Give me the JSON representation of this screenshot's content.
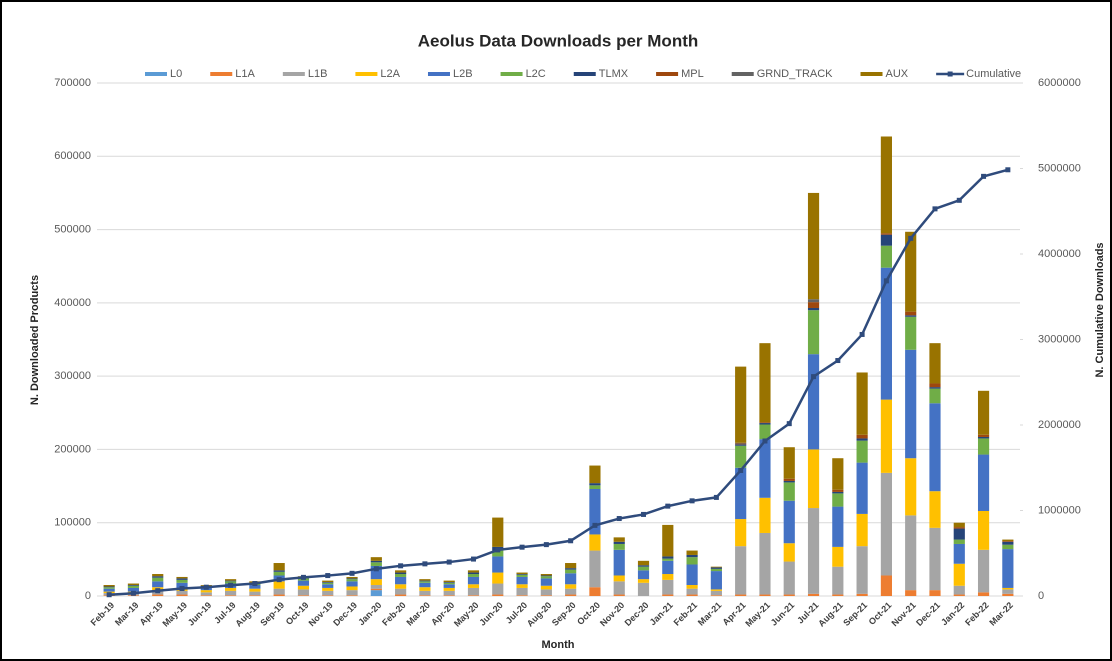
{
  "chart_data": {
    "type": "bar",
    "stacked": true,
    "title": "Aeolus Data Downloads per Month",
    "x_label": "Month",
    "y_label": "N. Downloaded Products",
    "y2_label": "N. Cumulative Downloads",
    "categories": [
      "Feb-19",
      "Mar-19",
      "Apr-19",
      "May-19",
      "Jun-19",
      "Jul-19",
      "Aug-19",
      "Sep-19",
      "Oct-19",
      "Nov-19",
      "Dec-19",
      "Jan-20",
      "Feb-20",
      "Mar-20",
      "Apr-20",
      "May-20",
      "Jun-20",
      "Jul-20",
      "Aug-20",
      "Sep-20",
      "Oct-20",
      "Nov-20",
      "Dec-20",
      "Jan-21",
      "Feb-21",
      "Mar-21",
      "Apr-21",
      "May-21",
      "Jun-21",
      "Jul-21",
      "Aug-21",
      "Sep-21",
      "Oct-21",
      "Nov-21",
      "Dec-21",
      "Jan-22",
      "Feb-22",
      "Mar-22"
    ],
    "ylim": [
      0,
      700000
    ],
    "yticks": [
      0,
      100000,
      200000,
      300000,
      400000,
      500000,
      600000,
      700000
    ],
    "y2lim": [
      0,
      6000000
    ],
    "y2ticks": [
      0,
      1000000,
      2000000,
      3000000,
      4000000,
      5000000,
      6000000
    ],
    "grid": true,
    "legend": "top",
    "series": [
      {
        "name": "L0",
        "color": "#5b9bd5",
        "values": [
          0,
          0,
          0,
          0,
          0,
          0,
          0,
          0,
          0,
          0,
          0,
          8000,
          0,
          0,
          0,
          0,
          0,
          0,
          0,
          0,
          0,
          0,
          0,
          0,
          0,
          0,
          0,
          0,
          0,
          0,
          0,
          0,
          0,
          0,
          0,
          0,
          0,
          0
        ]
      },
      {
        "name": "L1A",
        "color": "#ed7d31",
        "values": [
          1000,
          1000,
          2000,
          2000,
          1000,
          1000,
          1000,
          2000,
          1000,
          1000,
          1000,
          2000,
          2000,
          1000,
          1000,
          1000,
          2000,
          1000,
          1000,
          2000,
          12000,
          2000,
          0,
          2000,
          2000,
          1000,
          2000,
          2000,
          2000,
          3000,
          2000,
          3000,
          28000,
          8000,
          8000,
          2000,
          5000,
          3000
        ]
      },
      {
        "name": "L1B",
        "color": "#a5a5a5",
        "values": [
          3000,
          3000,
          6000,
          5000,
          4000,
          6000,
          5000,
          8000,
          8000,
          6000,
          7000,
          5000,
          8000,
          6000,
          6000,
          10000,
          15000,
          10000,
          8000,
          8000,
          50000,
          18000,
          18000,
          20000,
          8000,
          6000,
          66000,
          84000,
          45000,
          117000,
          38000,
          65000,
          140000,
          102000,
          85000,
          12000,
          58000,
          6000
        ]
      },
      {
        "name": "L2A",
        "color": "#ffc000",
        "values": [
          2000,
          2000,
          4000,
          3000,
          3000,
          4000,
          4000,
          10000,
          5000,
          4000,
          5000,
          8000,
          6000,
          5000,
          4000,
          5000,
          15000,
          5000,
          5000,
          6000,
          22000,
          8000,
          5000,
          8000,
          5000,
          2000,
          37000,
          48000,
          25000,
          80000,
          27000,
          44000,
          100000,
          78000,
          50000,
          30000,
          53000,
          2000
        ]
      },
      {
        "name": "L2B",
        "color": "#4472c4",
        "values": [
          4000,
          5000,
          8000,
          8000,
          3000,
          6000,
          5000,
          8000,
          7000,
          5000,
          7000,
          18000,
          10000,
          6000,
          5000,
          10000,
          22000,
          10000,
          10000,
          15000,
          62000,
          35000,
          12000,
          18000,
          28000,
          25000,
          70000,
          80000,
          58000,
          130000,
          55000,
          70000,
          180000,
          148000,
          120000,
          27000,
          77000,
          53000
        ]
      },
      {
        "name": "L2C",
        "color": "#70ad47",
        "values": [
          2000,
          3000,
          5000,
          4000,
          2000,
          3000,
          2000,
          5000,
          3000,
          2000,
          3000,
          5000,
          4000,
          2000,
          2000,
          4000,
          8000,
          3000,
          3000,
          5000,
          5000,
          8000,
          5000,
          3000,
          10000,
          3000,
          30000,
          20000,
          25000,
          60000,
          18000,
          30000,
          30000,
          45000,
          20000,
          6000,
          22000,
          6000
        ]
      },
      {
        "name": "TLMX",
        "color": "#264478",
        "values": [
          1000,
          1000,
          2000,
          2000,
          1000,
          1000,
          1000,
          2000,
          1000,
          1000,
          1000,
          2000,
          2000,
          1000,
          1000,
          2000,
          5000,
          1000,
          1000,
          2000,
          3000,
          3000,
          2000,
          3000,
          3000,
          2000,
          2000,
          2000,
          2000,
          3000,
          2000,
          3000,
          15000,
          2000,
          2000,
          15000,
          2000,
          4000
        ]
      },
      {
        "name": "MPL",
        "color": "#9e480e",
        "values": [
          0,
          0,
          0,
          0,
          0,
          0,
          0,
          0,
          0,
          0,
          0,
          0,
          0,
          0,
          0,
          0,
          0,
          0,
          0,
          0,
          0,
          0,
          0,
          0,
          0,
          0,
          1000,
          1000,
          3000,
          8000,
          3000,
          5000,
          2000,
          5000,
          5000,
          2000,
          3000,
          1000
        ]
      },
      {
        "name": "GRND_TRACK",
        "color": "#636363",
        "values": [
          0,
          0,
          0,
          0,
          0,
          0,
          0,
          0,
          0,
          0,
          0,
          0,
          0,
          0,
          0,
          0,
          0,
          0,
          0,
          0,
          0,
          0,
          0,
          0,
          0,
          0,
          1000,
          0,
          0,
          4000,
          0,
          0,
          0,
          0,
          0,
          0,
          0,
          0
        ]
      },
      {
        "name": "AUX",
        "color": "#997300",
        "values": [
          2000,
          2000,
          3000,
          2000,
          1000,
          2000,
          2000,
          10000,
          2000,
          2000,
          2000,
          5000,
          3000,
          2000,
          2000,
          3000,
          40000,
          2000,
          2000,
          7000,
          24000,
          6000,
          6000,
          43000,
          6000,
          1000,
          104000,
          108000,
          43000,
          145000,
          43000,
          85000,
          132000,
          109000,
          55000,
          6000,
          60000,
          2000
        ]
      },
      {
        "name": "Cumulative",
        "color": "#2f4b7c",
        "type": "line",
        "axis": "y2",
        "values": [
          15000,
          32000,
          62000,
          88000,
          103000,
          126000,
          146000,
          191000,
          218000,
          239000,
          265000,
          318000,
          353000,
          376000,
          397000,
          432000,
          539000,
          571000,
          601000,
          646000,
          826000,
          906000,
          954000,
          1051000,
          1113000,
          1153000,
          1468000,
          1813000,
          2016000,
          2566000,
          2754000,
          3059000,
          3686000,
          4183000,
          4528000,
          4628000,
          4908000,
          4985000
        ]
      }
    ]
  }
}
